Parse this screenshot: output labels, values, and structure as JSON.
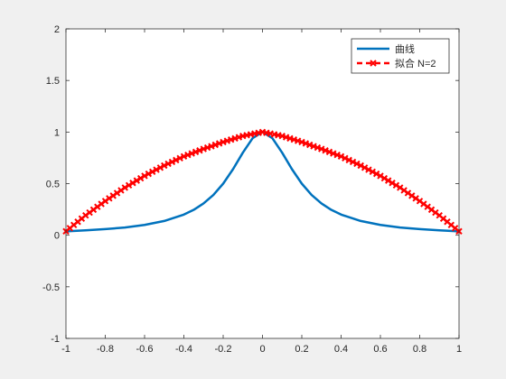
{
  "chart_data": {
    "type": "line",
    "xlim": [
      -1,
      1
    ],
    "ylim": [
      -1,
      2
    ],
    "xticks": [
      -1,
      -0.8,
      -0.6,
      -0.4,
      -0.2,
      0,
      0.2,
      0.4,
      0.6,
      0.8,
      1
    ],
    "yticks": [
      -1,
      -0.5,
      0,
      0.5,
      1,
      1.5,
      2
    ],
    "xtick_labels": [
      "-1",
      "-0.8",
      "-0.6",
      "-0.4",
      "-0.2",
      "0",
      "0.2",
      "0.4",
      "0.6",
      "0.8",
      "1"
    ],
    "ytick_labels": [
      "-1",
      "-0.5",
      "0",
      "0.5",
      "1",
      "1.5",
      "2"
    ],
    "grid": false,
    "legend_position": "top-right",
    "series": [
      {
        "name": "曲线",
        "color": "#0072bd",
        "style": "solid",
        "x": [
          -1,
          -0.9,
          -0.8,
          -0.7,
          -0.6,
          -0.5,
          -0.4,
          -0.35,
          -0.3,
          -0.25,
          -0.2,
          -0.15,
          -0.1,
          -0.05,
          0,
          0.05,
          0.1,
          0.15,
          0.2,
          0.25,
          0.3,
          0.35,
          0.4,
          0.5,
          0.6,
          0.7,
          0.8,
          0.9,
          1
        ],
        "y": [
          0.038,
          0.047,
          0.059,
          0.075,
          0.1,
          0.138,
          0.2,
          0.246,
          0.308,
          0.39,
          0.5,
          0.64,
          0.8,
          0.941,
          1,
          0.941,
          0.8,
          0.64,
          0.5,
          0.39,
          0.308,
          0.246,
          0.2,
          0.138,
          0.1,
          0.075,
          0.059,
          0.047,
          0.038
        ]
      },
      {
        "name": "拟合 N=2",
        "color": "#ff0000",
        "style": "dashed-with-x-markers",
        "x": [
          -1,
          -0.9,
          -0.8,
          -0.7,
          -0.6,
          -0.5,
          -0.4,
          -0.3,
          -0.2,
          -0.1,
          0,
          0.1,
          0.2,
          0.3,
          0.4,
          0.5,
          0.6,
          0.7,
          0.8,
          0.9,
          1
        ],
        "y": [
          0.038,
          0.192,
          0.331,
          0.461,
          0.575,
          0.675,
          0.764,
          0.836,
          0.903,
          0.962,
          1,
          0.962,
          0.903,
          0.836,
          0.764,
          0.675,
          0.575,
          0.461,
          0.331,
          0.192,
          0.038
        ]
      }
    ]
  }
}
